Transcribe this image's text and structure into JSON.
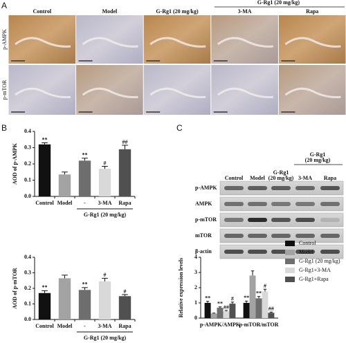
{
  "panel_labels": [
    "A",
    "B",
    "C"
  ],
  "ihc": {
    "columns": [
      "Control",
      "Model",
      "G-Rg1 (20 mg/kg)",
      "3-MA",
      "Rapa"
    ],
    "group_label": "G-Rg1 (20 mg/kg)",
    "rows": [
      "p-AMPK",
      "p-mTOR"
    ]
  },
  "blot": {
    "columns": [
      [
        "Control"
      ],
      [
        "Model"
      ],
      [
        "G-Rg1",
        "(20 mg/kg)"
      ],
      [
        "3-MA"
      ],
      [
        "Rapa"
      ]
    ],
    "group_label": [
      "G-Rg1",
      "(20 mg/kg)"
    ],
    "rows": [
      "p-AMPK",
      "AMPK",
      "p-mTOR",
      "mTOR",
      "β-actin"
    ]
  },
  "chart_data": [
    {
      "type": "bar",
      "ylabel": "AOD of p-AMPK",
      "categories": [
        "Control",
        "Model",
        "-",
        "3-MA",
        "Rapa"
      ],
      "values": [
        0.32,
        0.135,
        0.22,
        0.17,
        0.29
      ],
      "errors": [
        0.01,
        0.015,
        0.015,
        0.015,
        0.025
      ],
      "colors": [
        "#111111",
        "#a3a3a3",
        "#6e6e6e",
        "#d9d9d9",
        "#505050"
      ],
      "annotations": [
        "**",
        null,
        "**",
        "#",
        "##"
      ],
      "group_label": "G-Rg1 (20 mg/kg)",
      "ylim": [
        0,
        0.4
      ],
      "yticks": [
        {
          "value": 0,
          "label": "0.0"
        },
        0.1,
        0.2,
        0.3,
        0.4
      ]
    },
    {
      "type": "bar",
      "ylabel": "AOD of p-mTOR",
      "categories": [
        "Control",
        "Model",
        "-",
        "3-MA",
        "Rapa"
      ],
      "values": [
        0.17,
        0.265,
        0.19,
        0.245,
        0.15
      ],
      "errors": [
        0.015,
        0.02,
        0.015,
        0.02,
        0.01
      ],
      "colors": [
        "#111111",
        "#a3a3a3",
        "#6e6e6e",
        "#d9d9d9",
        "#505050"
      ],
      "annotations": [
        "**",
        null,
        "**",
        "#",
        "#"
      ],
      "group_label": "G-Rg1 (20 mg/kg)",
      "ylim": [
        0,
        0.4
      ],
      "yticks": [
        {
          "value": 0,
          "label": "0.0"
        },
        0.1,
        0.2,
        0.3,
        0.4
      ]
    },
    {
      "type": "grouped-bar",
      "ylabel": "Relative expression levels",
      "categories": [
        "p-AMPK/AMPK",
        "p-mTOR/mTOR"
      ],
      "series": [
        {
          "name": "Control",
          "color": "#111111",
          "values": [
            1.0,
            1.0
          ],
          "errors": [
            0.1,
            0.12
          ],
          "annotations": [
            "**",
            "**"
          ]
        },
        {
          "name": "Model",
          "color": "#a3a3a3",
          "values": [
            0.3,
            2.8
          ],
          "errors": [
            0.03,
            0.3
          ],
          "annotations": [
            null,
            null
          ]
        },
        {
          "name": "G-Rg1 (20 mg/kg)",
          "color": "#6e6e6e",
          "values": [
            0.68,
            1.3
          ],
          "errors": [
            0.06,
            0.12
          ],
          "annotations": [
            "**",
            "**"
          ]
        },
        {
          "name": "G-Rg1+3-MA",
          "color": "#d9d9d9",
          "values": [
            0.45,
            1.75
          ],
          "errors": [
            0.05,
            0.15
          ],
          "annotations": [
            "##",
            "#"
          ]
        },
        {
          "name": "G-Rg1+Rapa",
          "color": "#505050",
          "values": [
            0.95,
            0.35
          ],
          "errors": [
            0.1,
            0.05
          ],
          "annotations": [
            "#",
            "##"
          ]
        }
      ],
      "ylim": [
        0,
        4
      ],
      "yticks": [
        0,
        1,
        2,
        3,
        4
      ],
      "legend": "upper right"
    }
  ]
}
